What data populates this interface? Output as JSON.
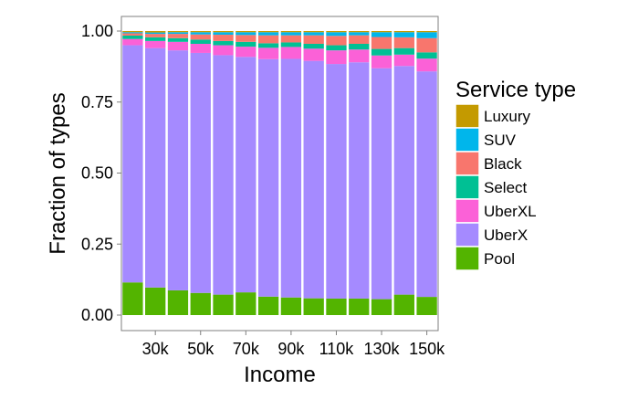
{
  "chart_data": {
    "type": "bar",
    "stacked": true,
    "xlabel": "Income",
    "ylabel": "Fraction of types",
    "ylim": [
      0,
      1
    ],
    "y_ticks": [
      0.0,
      0.25,
      0.5,
      0.75,
      1.0
    ],
    "y_tick_labels": [
      "0.00",
      "0.25",
      "0.50",
      "0.75",
      "1.00"
    ],
    "x_tick_labels": [
      "30k",
      "50k",
      "70k",
      "90k",
      "110k",
      "130k",
      "150k"
    ],
    "categories": [
      "20k",
      "30k",
      "40k",
      "50k",
      "60k",
      "70k",
      "80k",
      "90k",
      "100k",
      "110k",
      "120k",
      "130k",
      "140k",
      "150k"
    ],
    "legend": {
      "title": "Service type",
      "position": "right"
    },
    "series": [
      {
        "name": "Pool",
        "color": "#53B400",
        "values": [
          0.115,
          0.097,
          0.087,
          0.078,
          0.072,
          0.08,
          0.065,
          0.062,
          0.059,
          0.058,
          0.058,
          0.056,
          0.072,
          0.064
        ]
      },
      {
        "name": "UberX",
        "color": "#A58AFF",
        "values": [
          0.835,
          0.843,
          0.845,
          0.845,
          0.843,
          0.829,
          0.836,
          0.84,
          0.836,
          0.826,
          0.832,
          0.813,
          0.805,
          0.794
        ]
      },
      {
        "name": "UberXL",
        "color": "#FB61D7",
        "values": [
          0.022,
          0.025,
          0.03,
          0.032,
          0.035,
          0.036,
          0.04,
          0.042,
          0.043,
          0.048,
          0.045,
          0.045,
          0.04,
          0.045
        ]
      },
      {
        "name": "Select",
        "color": "#00C094",
        "values": [
          0.012,
          0.013,
          0.013,
          0.015,
          0.015,
          0.017,
          0.016,
          0.016,
          0.017,
          0.018,
          0.02,
          0.023,
          0.023,
          0.022
        ]
      },
      {
        "name": "Black",
        "color": "#F8766D",
        "values": [
          0.008,
          0.012,
          0.015,
          0.018,
          0.022,
          0.024,
          0.028,
          0.025,
          0.03,
          0.033,
          0.03,
          0.042,
          0.038,
          0.05
        ]
      },
      {
        "name": "SUV",
        "color": "#00B6EB",
        "values": [
          0.004,
          0.005,
          0.006,
          0.008,
          0.009,
          0.01,
          0.011,
          0.011,
          0.011,
          0.013,
          0.011,
          0.017,
          0.018,
          0.021
        ]
      },
      {
        "name": "Luxury",
        "color": "#C49A00",
        "values": [
          0.004,
          0.005,
          0.004,
          0.004,
          0.004,
          0.004,
          0.004,
          0.004,
          0.004,
          0.004,
          0.004,
          0.004,
          0.004,
          0.004
        ]
      }
    ],
    "legend_order": [
      "Luxury",
      "SUV",
      "Black",
      "Select",
      "UberXL",
      "UberX",
      "Pool"
    ],
    "panel_background": "#FFFFFF",
    "panel_border": "#7F7F7F"
  }
}
